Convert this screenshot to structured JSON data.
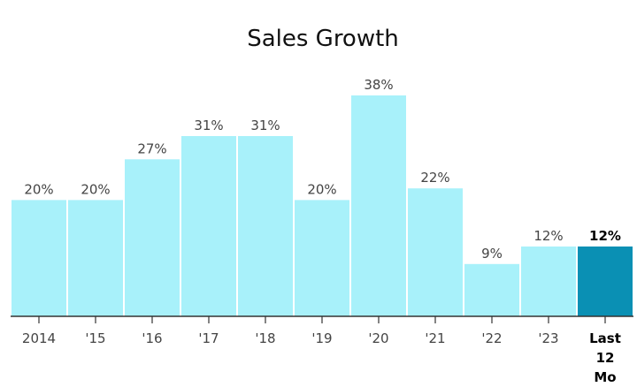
{
  "chart_data": {
    "type": "bar",
    "title": "Sales Growth",
    "xlabel": "",
    "ylabel": "",
    "categories": [
      "2014",
      "'15",
      "'16",
      "'17",
      "'18",
      "'19",
      "'20",
      "'21",
      "'22",
      "'23",
      "Last 12 Mo"
    ],
    "values": [
      20,
      20,
      27,
      31,
      31,
      20,
      38,
      22,
      9,
      12,
      12
    ],
    "value_labels": [
      "20%",
      "20%",
      "27%",
      "31%",
      "31%",
      "20%",
      "38%",
      "22%",
      "9%",
      "12%",
      "12%"
    ],
    "highlight_index": 10,
    "ylim": [
      0,
      40
    ],
    "grid": false,
    "legend": "none",
    "colors": {
      "bar": "#a8f1fa",
      "highlight": "#0a90b4",
      "axis": "#333333"
    }
  }
}
